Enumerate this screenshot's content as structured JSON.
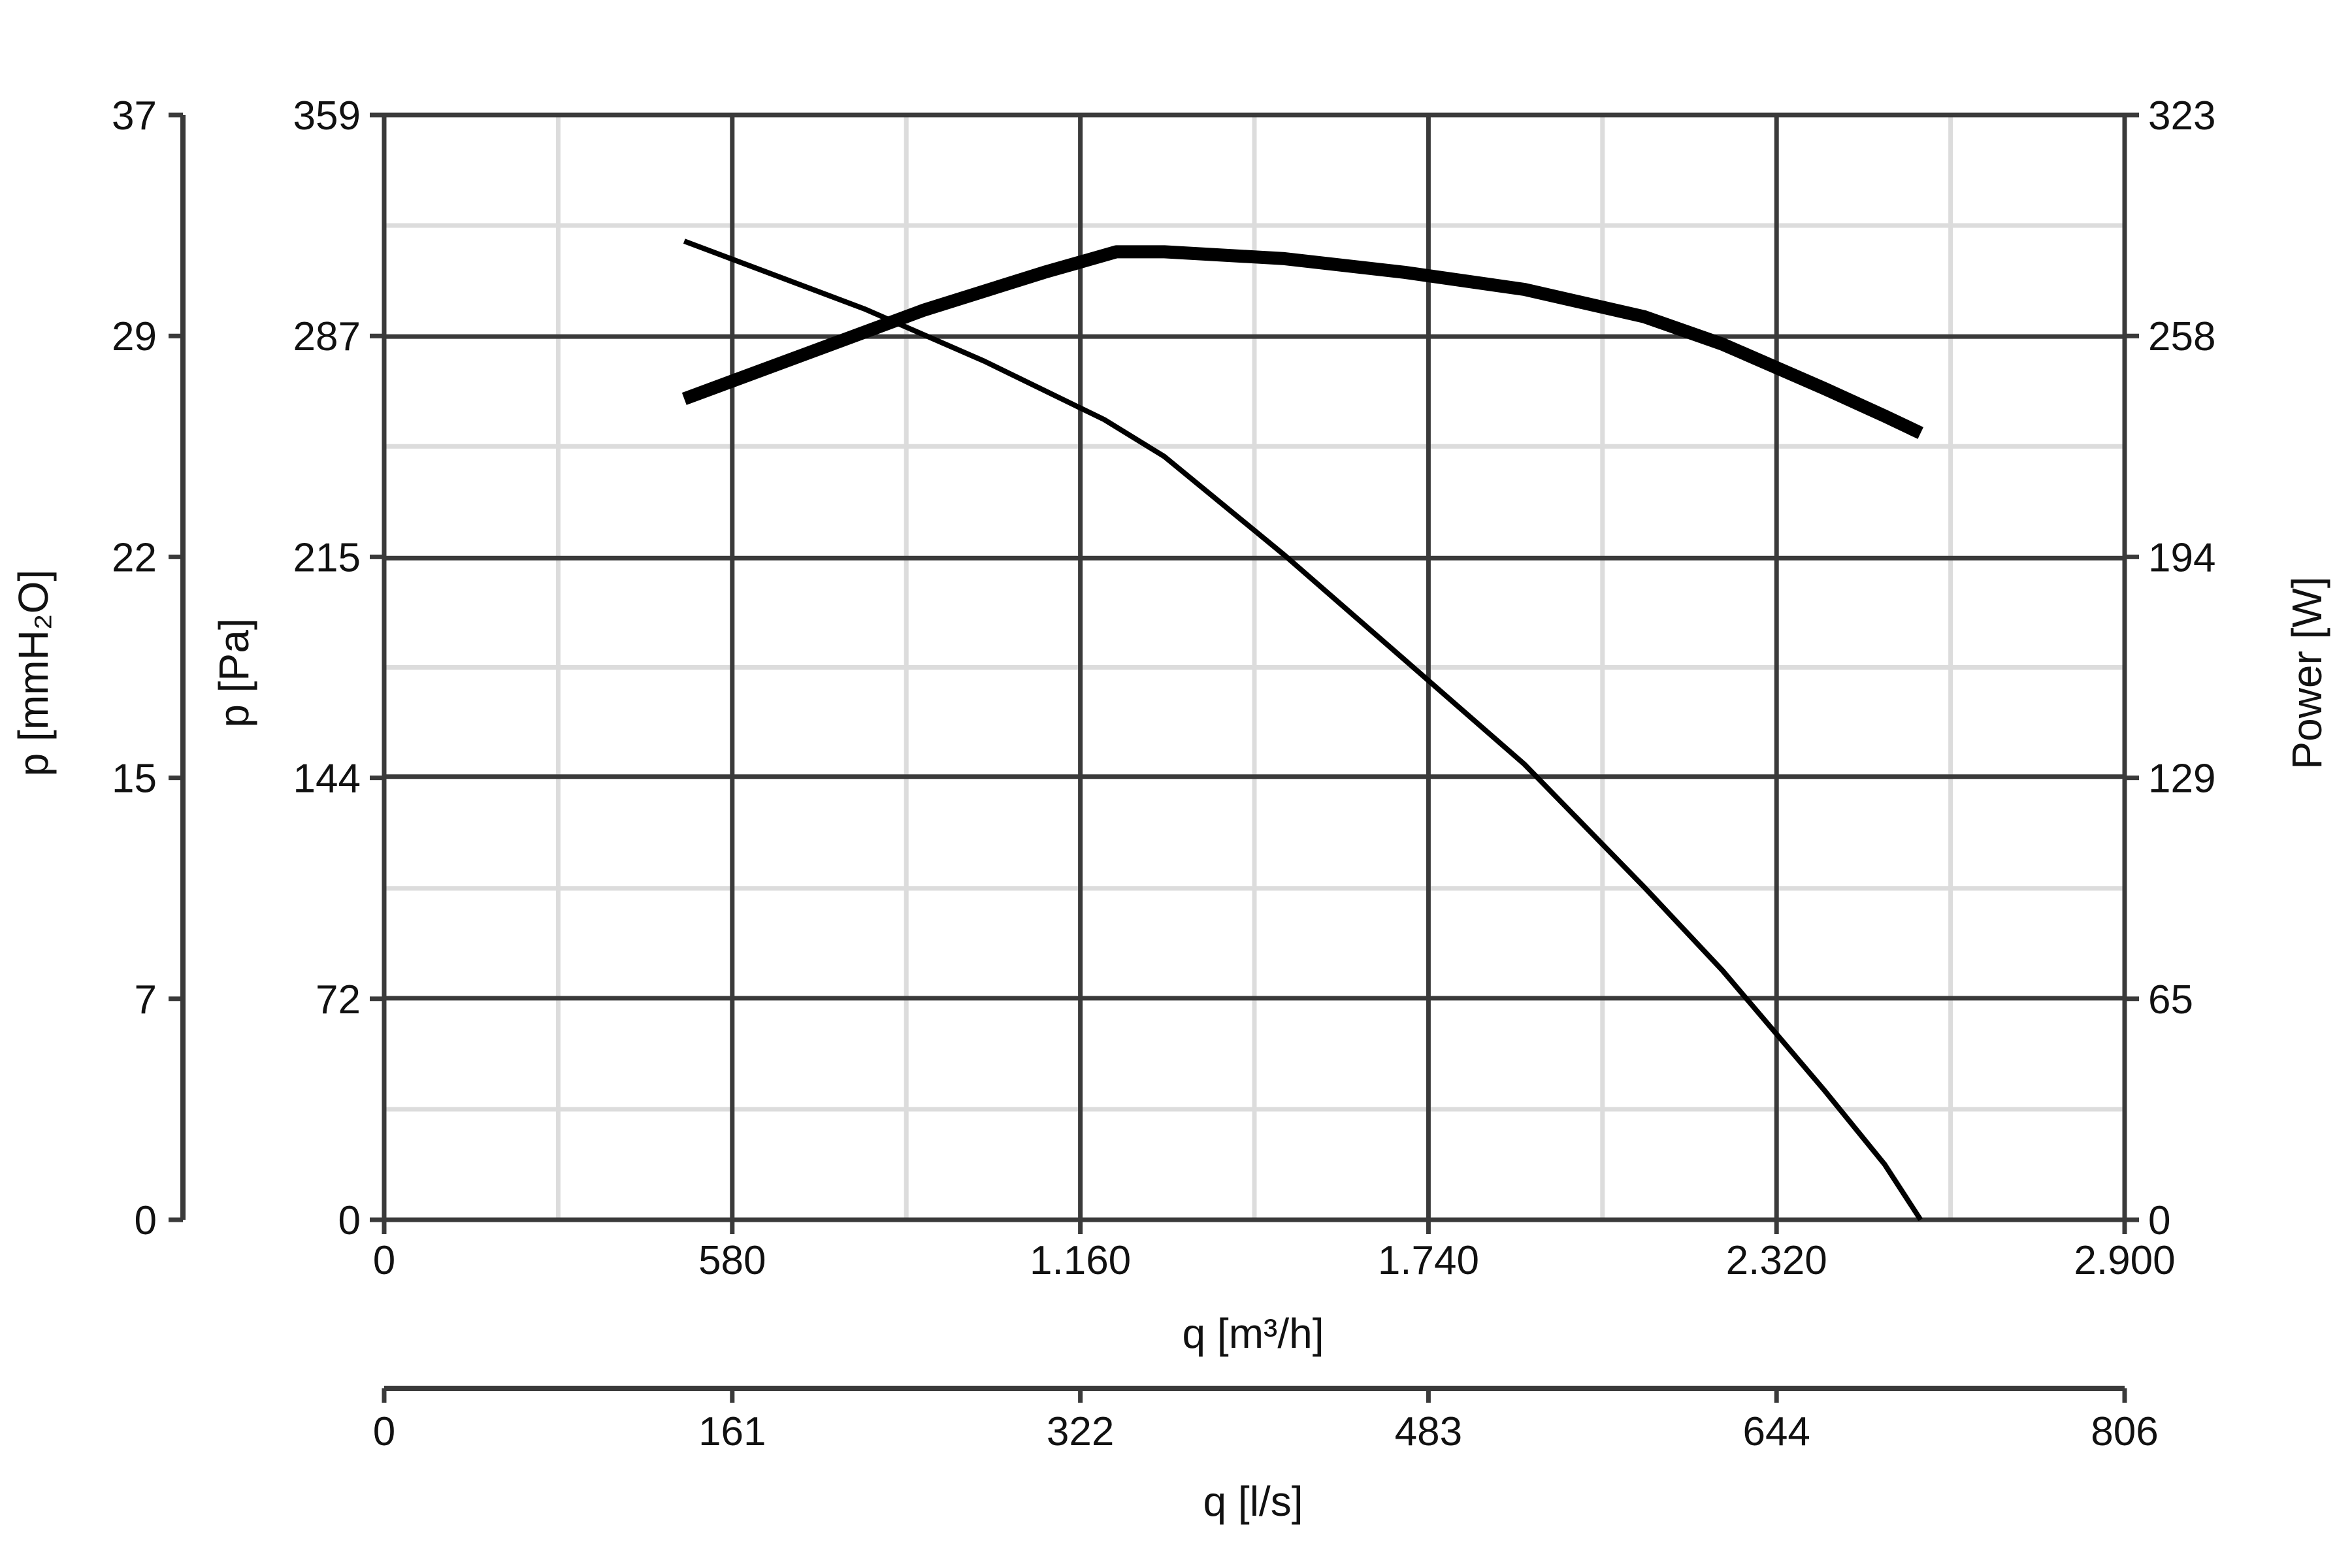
{
  "chart_data": {
    "type": "line",
    "title": "",
    "x_axis": {
      "label": "q [m³/h]",
      "range": [
        0,
        2900
      ],
      "ticks": [
        0,
        580,
        1160,
        1740,
        2320,
        2900
      ],
      "tick_labels": [
        "0",
        "580",
        "1.160",
        "1.740",
        "2.320",
        "2.900"
      ]
    },
    "x_axis_secondary": {
      "label": "q [l/s]",
      "range": [
        0,
        806
      ],
      "tick_labels": [
        "0",
        "161",
        "322",
        "483",
        "644",
        "806"
      ]
    },
    "y_axis": {
      "label": "p [Pa]",
      "range": [
        0,
        359
      ],
      "ticks": [
        0,
        72,
        144,
        215,
        287,
        359
      ],
      "tick_labels": [
        "0",
        "72",
        "144",
        "215",
        "287",
        "359"
      ]
    },
    "y_axis_secondary_left": {
      "label": "p [mmH₂O]",
      "range": [
        0,
        37
      ],
      "tick_labels": [
        "0",
        "7",
        "15",
        "22",
        "29",
        "37"
      ]
    },
    "y_axis_right": {
      "label": "Power [W]",
      "range": [
        0,
        323
      ],
      "ticks": [
        0,
        65,
        129,
        194,
        258,
        323
      ],
      "tick_labels": [
        "0",
        "65",
        "129",
        "194",
        "258",
        "323"
      ]
    },
    "grid": true,
    "series": [
      {
        "axis": "left",
        "line_weight": "thin",
        "points": [
          [
            500,
            318
          ],
          [
            800,
            296
          ],
          [
            1000,
            279
          ],
          [
            1200,
            260
          ],
          [
            1300,
            248
          ],
          [
            1500,
            216
          ],
          [
            1700,
            182
          ],
          [
            1900,
            148
          ],
          [
            2100,
            108
          ],
          [
            2230,
            81
          ],
          [
            2400,
            42
          ],
          [
            2500,
            18
          ],
          [
            2560,
            0
          ]
        ]
      },
      {
        "axis": "right",
        "line_weight": "thick",
        "points": [
          [
            500,
            240
          ],
          [
            700,
            253
          ],
          [
            900,
            266
          ],
          [
            1100,
            277
          ],
          [
            1220,
            283
          ],
          [
            1300,
            283
          ],
          [
            1500,
            281
          ],
          [
            1700,
            277
          ],
          [
            1900,
            272
          ],
          [
            2100,
            264
          ],
          [
            2230,
            256
          ],
          [
            2400,
            243
          ],
          [
            2500,
            235
          ],
          [
            2560,
            230
          ]
        ]
      }
    ]
  }
}
